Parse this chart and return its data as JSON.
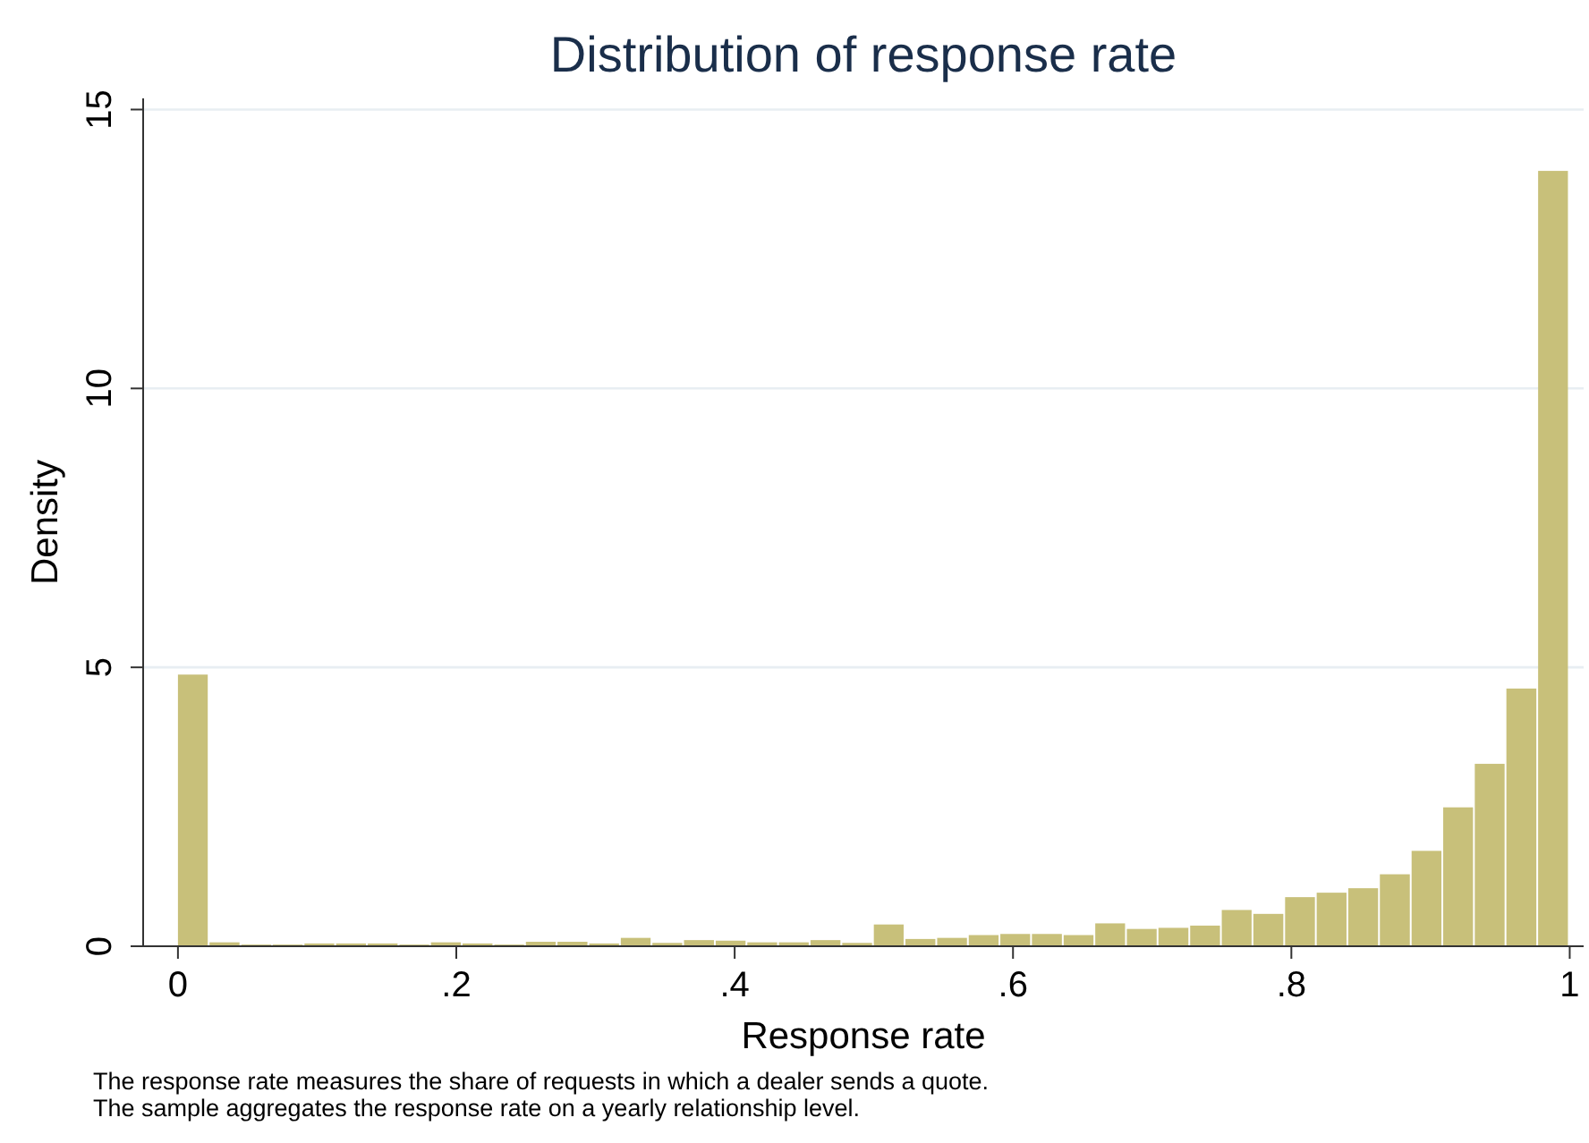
{
  "chart_data": {
    "type": "histogram",
    "title": "Distribution of response rate",
    "xlabel": "Response rate",
    "ylabel": "Density",
    "annotations": [
      "The response rate measures the share of requests in which a dealer sends a quote.",
      "The sample aggregates the response rate on a yearly relationship level."
    ],
    "bins": [
      0,
      0.0227,
      0.0455,
      0.0682,
      0.0909,
      0.1136,
      0.1364,
      0.1591,
      0.1818,
      0.2045,
      0.2273,
      0.25,
      0.2727,
      0.2955,
      0.3182,
      0.3409,
      0.3636,
      0.3864,
      0.4091,
      0.4318,
      0.4545,
      0.4773,
      0.5,
      0.5227,
      0.5455,
      0.5682,
      0.5909,
      0.6136,
      0.6364,
      0.6591,
      0.6818,
      0.7045,
      0.7273,
      0.75,
      0.7727,
      0.7955,
      0.8182,
      0.8409,
      0.8636,
      0.8864,
      0.9091,
      0.9318,
      0.9545,
      0.9773,
      1
    ],
    "values": [
      4.87,
      0.07,
      0.03,
      0.03,
      0.05,
      0.05,
      0.05,
      0.03,
      0.07,
      0.05,
      0.03,
      0.08,
      0.08,
      0.05,
      0.15,
      0.06,
      0.11,
      0.1,
      0.07,
      0.07,
      0.11,
      0.06,
      0.39,
      0.13,
      0.15,
      0.2,
      0.22,
      0.22,
      0.2,
      0.41,
      0.31,
      0.33,
      0.37,
      0.65,
      0.58,
      0.88,
      0.96,
      1.04,
      1.29,
      1.71,
      2.49,
      3.27,
      4.62,
      13.9
    ],
    "color": "#c8c07a",
    "xlim": [
      -0.025,
      1.01
    ],
    "ylim": [
      0,
      15.2
    ],
    "xticks": [
      0,
      {
        "value": 0.2,
        "label": ".2"
      },
      {
        "value": 0.4,
        "label": ".4"
      },
      {
        "value": 0.6,
        "label": ".6"
      },
      {
        "value": 0.8,
        "label": ".8"
      },
      1
    ],
    "yticks": [
      0,
      5,
      10,
      15
    ],
    "grid": "y"
  }
}
